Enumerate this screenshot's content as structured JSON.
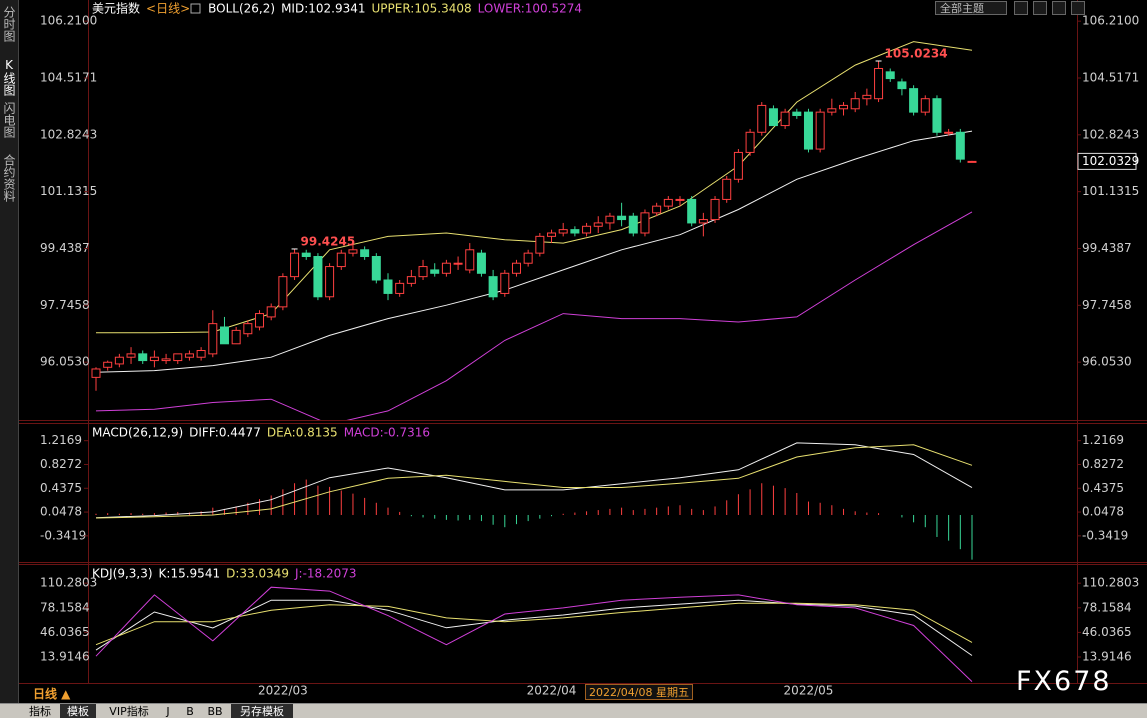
{
  "chart_data": [
    {
      "type": "candlestick",
      "header": [
        "美元指数",
        "<日线>",
        "BOLL(26,2)",
        "MID:102.9341",
        "UPPER:105.3408",
        "LOWER:100.5274"
      ],
      "categories": [
        null,
        null,
        null,
        null,
        null,
        null,
        null,
        null,
        null,
        null,
        null,
        null,
        null,
        null,
        null,
        null,
        "2022/03",
        null,
        null,
        null,
        null,
        null,
        null,
        null,
        null,
        null,
        null,
        null,
        null,
        null,
        null,
        null,
        null,
        null,
        null,
        null,
        null,
        null,
        null,
        "2022/04",
        null,
        null,
        null,
        null,
        null,
        null,
        null,
        null,
        null,
        null,
        null,
        null,
        null,
        null,
        null,
        null,
        null,
        null,
        null,
        null,
        null,
        "2022/05",
        null,
        null,
        null,
        null,
        null,
        null,
        null,
        null,
        null,
        null,
        null,
        null,
        null,
        null
      ],
      "candles": [
        [
          95.6,
          95.9,
          95.2,
          95.85
        ],
        [
          95.9,
          96.1,
          95.8,
          96.05
        ],
        [
          96.0,
          96.3,
          95.9,
          96.2
        ],
        [
          96.2,
          96.5,
          96.0,
          96.3
        ],
        [
          96.3,
          96.4,
          96.0,
          96.1
        ],
        [
          96.1,
          96.4,
          95.9,
          96.2
        ],
        [
          96.1,
          96.3,
          96.0,
          96.15
        ],
        [
          96.1,
          96.3,
          96.0,
          96.3
        ],
        [
          96.2,
          96.4,
          96.1,
          96.3
        ],
        [
          96.2,
          96.5,
          96.1,
          96.4
        ],
        [
          96.3,
          97.6,
          96.2,
          97.2
        ],
        [
          97.1,
          97.4,
          96.6,
          96.6
        ],
        [
          96.6,
          97.1,
          96.6,
          97.0
        ],
        [
          96.9,
          97.3,
          96.8,
          97.2
        ],
        [
          97.1,
          97.6,
          97.0,
          97.5
        ],
        [
          97.4,
          97.8,
          97.3,
          97.7
        ],
        [
          97.7,
          98.7,
          97.6,
          98.6
        ],
        [
          98.6,
          99.4245,
          98.5,
          99.3
        ],
        [
          99.3,
          99.4,
          99.1,
          99.2
        ],
        [
          99.2,
          99.3,
          97.9,
          98.0
        ],
        [
          98.0,
          99.0,
          97.9,
          98.9
        ],
        [
          98.9,
          99.4,
          98.8,
          99.3
        ],
        [
          99.3,
          99.6,
          99.2,
          99.4
        ],
        [
          99.4,
          99.5,
          99.1,
          99.2
        ],
        [
          99.2,
          99.3,
          98.4,
          98.5
        ],
        [
          98.5,
          98.7,
          97.9,
          98.1
        ],
        [
          98.1,
          98.5,
          98.0,
          98.4
        ],
        [
          98.4,
          98.8,
          98.3,
          98.6
        ],
        [
          98.6,
          99.1,
          98.5,
          98.9
        ],
        [
          98.8,
          99.0,
          98.6,
          98.7
        ],
        [
          98.7,
          99.1,
          98.6,
          99.0
        ],
        [
          99.0,
          99.2,
          98.8,
          99.0
        ],
        [
          98.8,
          99.6,
          98.7,
          99.4
        ],
        [
          99.3,
          99.4,
          98.6,
          98.7
        ],
        [
          98.6,
          98.8,
          97.9,
          98.0
        ],
        [
          98.1,
          98.8,
          98.0,
          98.7
        ],
        [
          98.7,
          99.1,
          98.6,
          99.0
        ],
        [
          99.0,
          99.4,
          98.9,
          99.3
        ],
        [
          99.3,
          99.9,
          99.2,
          99.8
        ],
        [
          99.8,
          100.0,
          99.6,
          99.9
        ],
        [
          99.9,
          100.2,
          99.8,
          100.0
        ],
        [
          100.0,
          100.1,
          99.8,
          99.9
        ],
        [
          99.9,
          100.2,
          99.8,
          100.1
        ],
        [
          100.1,
          100.4,
          99.9,
          100.2
        ],
        [
          100.2,
          100.5,
          100.0,
          100.4
        ],
        [
          100.4,
          100.8,
          100.1,
          100.3
        ],
        [
          100.4,
          100.5,
          99.8,
          99.9
        ],
        [
          99.9,
          100.6,
          99.8,
          100.5
        ],
        [
          100.5,
          100.8,
          100.4,
          100.7
        ],
        [
          100.7,
          101.0,
          100.6,
          100.9
        ],
        [
          100.9,
          101.0,
          100.7,
          100.9
        ],
        [
          100.9,
          101.0,
          100.1,
          100.2
        ],
        [
          100.2,
          100.5,
          99.8,
          100.3
        ],
        [
          100.3,
          101.0,
          100.2,
          100.9
        ],
        [
          100.9,
          101.6,
          100.8,
          101.5
        ],
        [
          101.5,
          102.4,
          101.4,
          102.3
        ],
        [
          102.3,
          103.0,
          102.2,
          102.9
        ],
        [
          102.9,
          103.8,
          102.8,
          103.7
        ],
        [
          103.6,
          103.7,
          103.1,
          103.1
        ],
        [
          103.1,
          103.6,
          103.0,
          103.5
        ],
        [
          103.5,
          103.6,
          103.3,
          103.4
        ],
        [
          103.5,
          103.6,
          102.3,
          102.4
        ],
        [
          102.4,
          103.6,
          102.3,
          103.5
        ],
        [
          103.5,
          103.9,
          103.4,
          103.6
        ],
        [
          103.6,
          103.8,
          103.4,
          103.7
        ],
        [
          103.6,
          104.1,
          103.5,
          103.9
        ],
        [
          103.9,
          104.2,
          103.7,
          104.0
        ],
        [
          103.9,
          105.0234,
          103.8,
          104.8
        ],
        [
          104.7,
          104.8,
          104.4,
          104.5
        ],
        [
          104.4,
          104.5,
          104.0,
          104.2
        ],
        [
          104.2,
          104.3,
          103.4,
          103.5
        ],
        [
          103.5,
          104.0,
          103.4,
          103.9
        ],
        [
          103.9,
          104.0,
          102.8,
          102.9
        ],
        [
          102.9,
          103.0,
          102.8,
          102.9
        ],
        [
          102.9,
          103.0,
          102.0,
          102.1
        ],
        [
          102.03,
          102.05,
          102.02,
          102.0329
        ]
      ],
      "up_color": "#ff4040",
      "down_color": "#38d898",
      "series": [
        {
          "color": "#e8e070",
          "x": [
            0,
            5,
            10,
            15,
            20,
            25,
            30,
            35,
            40,
            45,
            50,
            55,
            60,
            65,
            70,
            75
          ],
          "values": [
            96.93,
            96.93,
            96.95,
            97.5,
            99.4,
            99.8,
            99.9,
            99.7,
            99.6,
            100.0,
            100.7,
            101.9,
            103.8,
            104.9,
            105.6,
            105.3408
          ]
        },
        {
          "color": "#f0f0f0",
          "x": [
            0,
            5,
            10,
            15,
            20,
            25,
            30,
            35,
            40,
            45,
            50,
            55,
            60,
            65,
            70,
            75
          ],
          "values": [
            95.75,
            95.8,
            95.95,
            96.2,
            96.85,
            97.35,
            97.75,
            98.2,
            98.8,
            99.4,
            99.85,
            100.6,
            101.5,
            102.1,
            102.65,
            102.9341
          ]
        },
        {
          "color": "#d040d8",
          "x": [
            0,
            5,
            10,
            15,
            20,
            25,
            30,
            35,
            40,
            45,
            50,
            55,
            60,
            65,
            70,
            75
          ],
          "values": [
            94.6,
            94.65,
            94.85,
            94.95,
            94.2,
            94.6,
            95.5,
            96.7,
            97.5,
            97.35,
            97.35,
            97.25,
            97.4,
            98.5,
            99.55,
            100.5274
          ]
        }
      ],
      "ylim": [
        94.33,
        106.84
      ],
      "yticks": [
        {
          "value": 106.21,
          "label": "106.2100"
        },
        104.5171,
        102.8243,
        101.1315,
        99.4387,
        97.7458,
        {
          "value": 96.053,
          "label": "96.0530"
        }
      ]
    },
    {
      "type": "macd",
      "header": [
        "MACD(26,12,9)",
        "DIFF:0.4477",
        "DEA:0.8135",
        "MACD:-0.7316"
      ],
      "histogram": [
        0.02,
        0.03,
        0.02,
        0.03,
        0.02,
        0.03,
        0.04,
        0.05,
        0.04,
        0.06,
        0.12,
        0.1,
        0.14,
        0.2,
        0.26,
        0.32,
        0.42,
        0.52,
        0.58,
        0.48,
        0.46,
        0.4,
        0.35,
        0.28,
        0.2,
        0.12,
        0.05,
        -0.02,
        -0.04,
        -0.06,
        -0.08,
        -0.09,
        -0.08,
        -0.1,
        -0.16,
        -0.2,
        -0.15,
        -0.1,
        -0.06,
        -0.02,
        0.02,
        0.04,
        0.06,
        0.08,
        0.1,
        0.12,
        0.08,
        0.1,
        0.12,
        0.14,
        0.16,
        0.1,
        0.08,
        0.14,
        0.24,
        0.34,
        0.42,
        0.52,
        0.48,
        0.44,
        0.36,
        0.22,
        0.2,
        0.16,
        0.1,
        0.06,
        0.04,
        0.03,
        0.0,
        -0.04,
        -0.12,
        -0.2,
        -0.36,
        -0.42,
        -0.56,
        -0.7316
      ],
      "up_color": "#ff4040",
      "down_color": "#38d898",
      "series": [
        {
          "color": "#f0f0f0",
          "x": [
            0,
            5,
            10,
            15,
            20,
            25,
            30,
            35,
            40,
            45,
            50,
            55,
            60,
            65,
            70,
            75
          ],
          "values": [
            -0.045,
            -0.01,
            0.05,
            0.25,
            0.61,
            0.77,
            0.61,
            0.41,
            0.41,
            0.51,
            0.61,
            0.74,
            1.18,
            1.15,
            0.99,
            0.4477
          ]
        },
        {
          "color": "#e8e070",
          "x": [
            0,
            5,
            10,
            15,
            20,
            25,
            30,
            35,
            40,
            45,
            50,
            55,
            60,
            65,
            70,
            75
          ],
          "values": [
            -0.05,
            -0.03,
            0.0,
            0.1,
            0.38,
            0.6,
            0.65,
            0.55,
            0.45,
            0.45,
            0.52,
            0.6,
            0.95,
            1.1,
            1.15,
            0.8135
          ]
        }
      ],
      "ylim": [
        -0.77,
        1.49
      ],
      "yticks": [
        1.2169,
        0.8272,
        0.4375,
        0.0478,
        -0.3419
      ]
    },
    {
      "type": "line",
      "header": [
        "KDJ(9,3,3)",
        "K:15.9541",
        "D:33.0349",
        "J:-18.2073"
      ],
      "series": [
        {
          "color": "#f0f0f0",
          "x": [
            0,
            5,
            10,
            15,
            20,
            25,
            30,
            35,
            40,
            45,
            50,
            55,
            60,
            65,
            70,
            75
          ],
          "values": [
            23,
            72.6,
            51.8,
            88,
            88,
            75,
            52,
            62,
            68.7,
            77.8,
            83,
            88,
            83,
            80.4,
            68.7,
            15.9541
          ]
        },
        {
          "color": "#e8e070",
          "x": [
            0,
            5,
            10,
            15,
            20,
            25,
            30,
            35,
            40,
            45,
            50,
            55,
            60,
            65,
            70,
            75
          ],
          "values": [
            30,
            60,
            60,
            75,
            82,
            80,
            65,
            60,
            65,
            72,
            78,
            84,
            84,
            82,
            75,
            33.0349
          ]
        },
        {
          "color": "#d040d8",
          "x": [
            0,
            5,
            10,
            15,
            20,
            25,
            30,
            35,
            40,
            45,
            50,
            55,
            60,
            65,
            70,
            75
          ],
          "values": [
            15,
            95,
            35,
            105,
            100,
            68,
            30,
            70,
            78,
            88,
            92,
            95,
            82,
            78,
            55,
            -18.2073
          ]
        }
      ],
      "ylim": [
        -20,
        134
      ],
      "yticks": [
        110.2803,
        78.1584,
        46.0365,
        13.9146
      ]
    }
  ],
  "ui": {
    "sidebar": [
      "分时图",
      "K线图",
      "闪电图",
      "合约资料"
    ],
    "theme_button": "全部主题",
    "period": "日线 ▲",
    "cursor_date": "2022/04/08 星期五",
    "watermark": "FX678",
    "tabs": [
      "指标",
      "模板",
      "VIP指标",
      "J",
      "B",
      "BB",
      "另存模板"
    ]
  }
}
